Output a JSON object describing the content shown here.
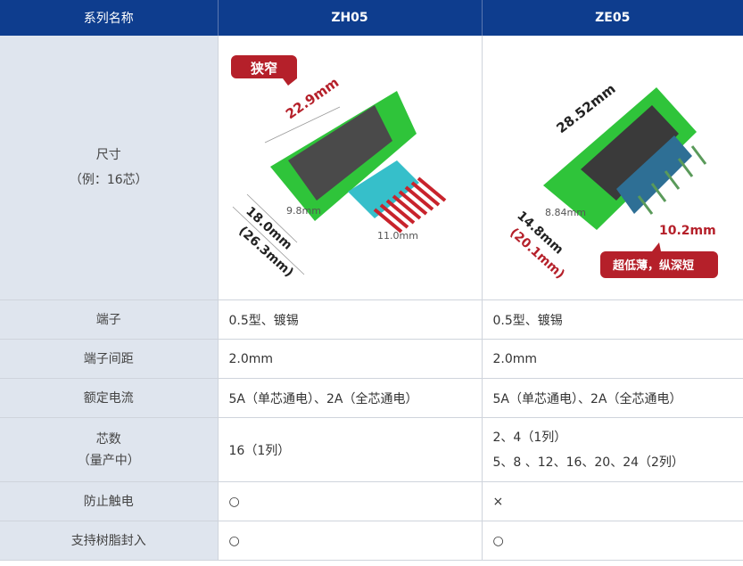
{
  "header": {
    "label": "系列名称",
    "products": [
      "ZH05",
      "ZE05"
    ]
  },
  "size_row": {
    "label": "尺寸",
    "sublabel": "（例：16芯）",
    "zh05": {
      "callout": "狭窄",
      "width": "22.9mm",
      "depth": "18.0mm",
      "depth_total": "(26.3mm)",
      "height_body": "9.8mm",
      "height_pin": "11.0mm"
    },
    "ze05": {
      "callout": "超低薄，纵深短",
      "width": "28.52mm",
      "depth": "14.8mm",
      "depth_total": "(20.1mm)",
      "height_body": "8.84mm",
      "height_total": "10.2mm"
    }
  },
  "rows": [
    {
      "label": "端子",
      "zh05": "0.5型、镀锡",
      "ze05": "0.5型、镀锡"
    },
    {
      "label": "端子间距",
      "zh05": "2.0mm",
      "ze05": "2.0mm"
    },
    {
      "label": "额定电流",
      "zh05": "5A（单芯通电）、2A（全芯通电）",
      "ze05": "5A（单芯通电）、2A（全芯通电）"
    }
  ],
  "pins_row": {
    "label": "芯数",
    "sublabel": "（量产中）",
    "zh05": "16（1列）",
    "ze05_line1": "2、4（1列）",
    "ze05_line2": "5、8 、12、16、20、24（2列）"
  },
  "rows2": [
    {
      "label": "防止触电",
      "zh05": "○",
      "ze05": "×"
    },
    {
      "label": "支持树脂封入",
      "zh05": "○",
      "ze05": "○"
    }
  ],
  "colors": {
    "header": "#0e3d8e",
    "label_bg": "#dfe5ee",
    "callout": "#b5202a",
    "pcb": "#2fc43a"
  }
}
